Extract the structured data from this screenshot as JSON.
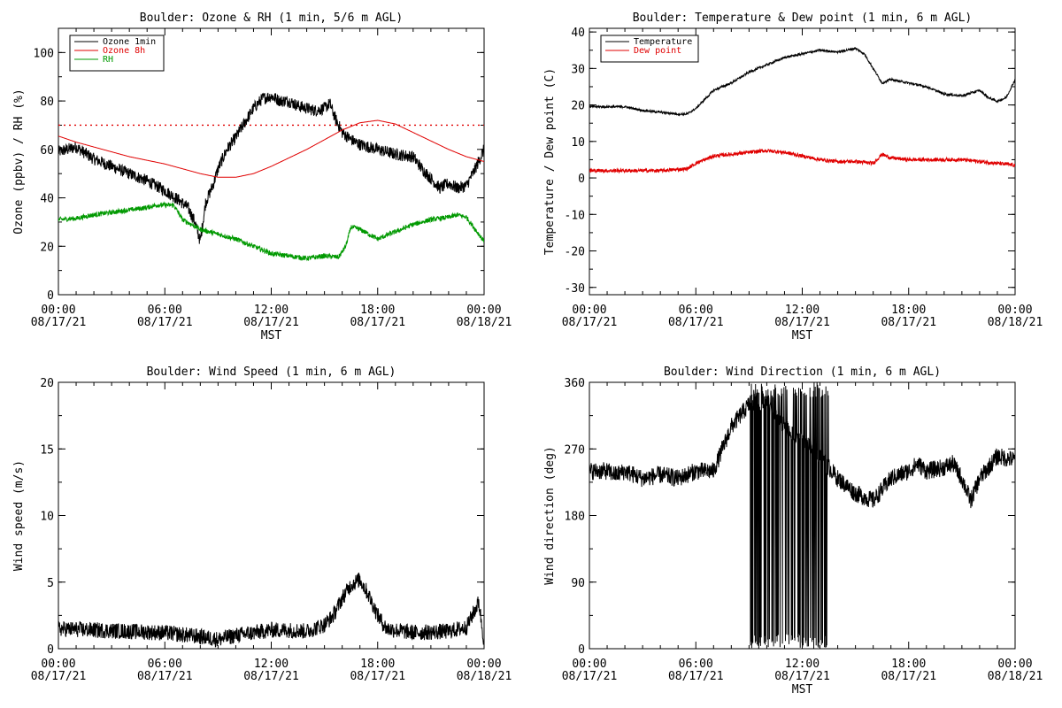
{
  "colors": {
    "black": "#000000",
    "red": "#e00000",
    "green": "#009900"
  },
  "chart_data": [
    {
      "type": "line",
      "title": "Boulder: Ozone & RH (1 min, 5/6 m AGL)",
      "xlabel": "MST",
      "ylabel": "Ozone (ppbv) / RH (%)",
      "xlim": [
        0,
        24
      ],
      "ylim": [
        0,
        110
      ],
      "yticks": [
        0,
        20,
        40,
        60,
        80,
        100
      ],
      "x_tick_hours": [
        "00:00",
        "06:00",
        "12:00",
        "18:00",
        "00:00"
      ],
      "x_tick_dates": [
        "08/17/21",
        "08/17/21",
        "08/17/21",
        "08/17/21",
        "08/18/21"
      ],
      "legend_position": "top-left",
      "reference_line": {
        "y": 70,
        "color": "#e00000",
        "style": "dotted"
      },
      "series": [
        {
          "name": "Ozone 1min",
          "color": "#000000",
          "noise": 2.5,
          "points": [
            [
              0,
              59
            ],
            [
              1,
              61
            ],
            [
              2,
              56
            ],
            [
              3,
              53
            ],
            [
              4,
              50
            ],
            [
              5,
              47
            ],
            [
              6,
              43
            ],
            [
              6.8,
              39
            ],
            [
              7.3,
              36
            ],
            [
              7.7,
              30
            ],
            [
              8,
              22
            ],
            [
              8.3,
              38
            ],
            [
              8.7,
              45
            ],
            [
              9,
              52
            ],
            [
              9.5,
              60
            ],
            [
              10,
              65
            ],
            [
              10.5,
              71
            ],
            [
              11,
              77
            ],
            [
              11.5,
              81
            ],
            [
              12,
              82
            ],
            [
              12.5,
              80
            ],
            [
              13,
              80
            ],
            [
              13.5,
              78
            ],
            [
              14,
              77
            ],
            [
              14.5,
              76
            ],
            [
              15,
              77
            ],
            [
              15.3,
              79
            ],
            [
              15.6,
              73
            ],
            [
              16,
              67
            ],
            [
              16.5,
              64
            ],
            [
              17,
              62
            ],
            [
              18,
              60
            ],
            [
              19,
              58
            ],
            [
              20,
              57
            ],
            [
              20.5,
              52
            ],
            [
              21,
              48
            ],
            [
              21.5,
              44
            ],
            [
              22,
              46
            ],
            [
              22.5,
              44
            ],
            [
              23,
              45
            ],
            [
              23.5,
              52
            ],
            [
              24,
              60
            ]
          ]
        },
        {
          "name": "Ozone 8h",
          "color": "#e00000",
          "noise": 0,
          "points": [
            [
              0,
              65.5
            ],
            [
              1,
              63
            ],
            [
              2,
              61
            ],
            [
              3,
              59
            ],
            [
              4,
              57
            ],
            [
              5,
              55.5
            ],
            [
              6,
              54
            ],
            [
              7,
              52
            ],
            [
              8,
              50
            ],
            [
              9,
              48.5
            ],
            [
              10,
              48.5
            ],
            [
              11,
              50
            ],
            [
              12,
              53
            ],
            [
              13,
              56.5
            ],
            [
              14,
              60
            ],
            [
              15,
              64
            ],
            [
              16,
              68
            ],
            [
              17,
              71
            ],
            [
              18,
              72
            ],
            [
              19,
              70.5
            ],
            [
              20,
              67
            ],
            [
              21,
              63.5
            ],
            [
              22,
              60
            ],
            [
              23,
              57
            ],
            [
              24,
              55
            ]
          ]
        },
        {
          "name": "RH",
          "color": "#009900",
          "noise": 1.0,
          "points": [
            [
              0,
              31
            ],
            [
              1,
              31.5
            ],
            [
              2,
              33
            ],
            [
              3,
              34
            ],
            [
              4,
              35
            ],
            [
              5,
              36
            ],
            [
              5.5,
              37
            ],
            [
              6,
              37
            ],
            [
              6.5,
              37
            ],
            [
              7,
              31
            ],
            [
              8,
              27
            ],
            [
              9,
              25
            ],
            [
              10,
              23
            ],
            [
              11,
              20
            ],
            [
              12,
              17
            ],
            [
              13,
              16
            ],
            [
              14,
              15
            ],
            [
              15,
              16
            ],
            [
              15.8,
              15.5
            ],
            [
              16.2,
              20
            ],
            [
              16.5,
              28
            ],
            [
              17,
              27
            ],
            [
              18,
              23
            ],
            [
              19,
              26
            ],
            [
              20,
              29
            ],
            [
              21,
              31
            ],
            [
              22,
              32
            ],
            [
              22.5,
              33
            ],
            [
              23,
              32
            ],
            [
              23.5,
              27
            ],
            [
              24,
              22
            ]
          ]
        }
      ]
    },
    {
      "type": "line",
      "title": "Boulder: Temperature & Dew point (1 min, 6 m AGL)",
      "xlabel": "MST",
      "ylabel": "Temperature / Dew point (C)",
      "xlim": [
        0,
        24
      ],
      "ylim": [
        -32,
        41
      ],
      "yticks": [
        -30,
        -20,
        -10,
        0,
        10,
        20,
        30,
        40
      ],
      "x_tick_hours": [
        "00:00",
        "06:00",
        "12:00",
        "18:00",
        "00:00"
      ],
      "x_tick_dates": [
        "08/17/21",
        "08/17/21",
        "08/17/21",
        "08/17/21",
        "08/18/21"
      ],
      "legend_position": "top-left",
      "series": [
        {
          "name": "Temperature",
          "color": "#000000",
          "noise": 0.3,
          "points": [
            [
              0,
              19.5
            ],
            [
              1,
              19.5
            ],
            [
              2,
              19.5
            ],
            [
              3,
              18.5
            ],
            [
              4,
              18
            ],
            [
              5,
              17.5
            ],
            [
              5.5,
              17.5
            ],
            [
              6,
              19
            ],
            [
              7,
              24
            ],
            [
              8,
              26
            ],
            [
              9,
              29
            ],
            [
              10,
              31
            ],
            [
              11,
              33
            ],
            [
              12,
              34
            ],
            [
              13,
              35
            ],
            [
              14,
              34.5
            ],
            [
              15,
              35.5
            ],
            [
              15.5,
              34
            ],
            [
              16,
              30
            ],
            [
              16.5,
              26
            ],
            [
              17,
              27
            ],
            [
              18,
              26
            ],
            [
              19,
              25
            ],
            [
              20,
              23
            ],
            [
              21,
              22.5
            ],
            [
              22,
              24
            ],
            [
              22.5,
              22
            ],
            [
              23,
              21
            ],
            [
              23.5,
              22
            ],
            [
              24,
              27
            ]
          ]
        },
        {
          "name": "Dew point",
          "color": "#e00000",
          "noise": 0.5,
          "points": [
            [
              0,
              2
            ],
            [
              2,
              2
            ],
            [
              4,
              2
            ],
            [
              5.5,
              2.5
            ],
            [
              6,
              4
            ],
            [
              7,
              6
            ],
            [
              8,
              6.5
            ],
            [
              9,
              7
            ],
            [
              10,
              7.5
            ],
            [
              11,
              7
            ],
            [
              12,
              6
            ],
            [
              13,
              5
            ],
            [
              14,
              4.5
            ],
            [
              15,
              4.5
            ],
            [
              16,
              4
            ],
            [
              16.5,
              6.5
            ],
            [
              17,
              5.5
            ],
            [
              18,
              5
            ],
            [
              19,
              5
            ],
            [
              20,
              5
            ],
            [
              21,
              5
            ],
            [
              22,
              4.5
            ],
            [
              23,
              4
            ],
            [
              24,
              3.5
            ]
          ]
        }
      ]
    },
    {
      "type": "line",
      "title": "Boulder: Wind Speed (1 min, 6 m AGL)",
      "xlabel": "",
      "ylabel": "Wind speed (m/s)",
      "xlim": [
        0,
        24
      ],
      "ylim": [
        0,
        20
      ],
      "yticks": [
        0,
        5,
        10,
        15,
        20
      ],
      "x_tick_hours": [
        "00:00",
        "06:00",
        "12:00",
        "18:00",
        "00:00"
      ],
      "x_tick_dates": [
        "08/17/21",
        "08/17/21",
        "08/17/21",
        "08/17/21",
        "08/18/21"
      ],
      "series": [
        {
          "name": "",
          "color": "#000000",
          "noise": 0.6,
          "points": [
            [
              0,
              1.5
            ],
            [
              2,
              1.4
            ],
            [
              4,
              1.3
            ],
            [
              6,
              1.2
            ],
            [
              8,
              0.9
            ],
            [
              9,
              0.7
            ],
            [
              10,
              1.0
            ],
            [
              11,
              1.2
            ],
            [
              12,
              1.4
            ],
            [
              13,
              1.4
            ],
            [
              14,
              1.3
            ],
            [
              15,
              1.8
            ],
            [
              15.5,
              2.5
            ],
            [
              16,
              3.8
            ],
            [
              16.5,
              4.8
            ],
            [
              17,
              5.2
            ],
            [
              17.5,
              4.0
            ],
            [
              18,
              2.5
            ],
            [
              18.5,
              1.5
            ],
            [
              20,
              1.2
            ],
            [
              22,
              1.3
            ],
            [
              23,
              1.6
            ],
            [
              23.7,
              3.5
            ],
            [
              24,
              0.5
            ]
          ]
        }
      ]
    },
    {
      "type": "line",
      "title": "Boulder: Wind Direction (1 min, 6 m AGL)",
      "xlabel": "MST",
      "ylabel": "Wind direction (deg)",
      "xlim": [
        0,
        24
      ],
      "ylim": [
        0,
        360
      ],
      "yticks": [
        0,
        90,
        180,
        270,
        360
      ],
      "x_tick_hours": [
        "00:00",
        "06:00",
        "12:00",
        "18:00",
        "00:00"
      ],
      "x_tick_dates": [
        "08/17/21",
        "08/17/21",
        "08/17/21",
        "08/17/21",
        "08/18/21"
      ],
      "series": [
        {
          "name": "",
          "color": "#000000",
          "noise": 12,
          "points": [
            [
              0,
              240
            ],
            [
              1,
              240
            ],
            [
              1.5,
              235
            ],
            [
              2,
              240
            ],
            [
              3,
              230
            ],
            [
              4,
              235
            ],
            [
              5,
              230
            ],
            [
              6,
              240
            ],
            [
              7,
              240
            ],
            [
              7.5,
              270
            ],
            [
              8,
              300
            ],
            [
              8.5,
              315
            ],
            [
              9,
              330
            ],
            [
              9.5,
              335
            ],
            [
              10,
              330
            ],
            [
              11,
              300
            ],
            [
              12,
              280
            ],
            [
              13,
              260
            ],
            [
              14,
              230
            ],
            [
              15,
              210
            ],
            [
              16,
              200
            ],
            [
              17,
              230
            ],
            [
              18,
              240
            ],
            [
              18.5,
              250
            ],
            [
              19,
              240
            ],
            [
              20,
              245
            ],
            [
              20.5,
              250
            ],
            [
              21,
              230
            ],
            [
              21.5,
              200
            ],
            [
              22,
              230
            ],
            [
              23,
              260
            ],
            [
              24,
              255
            ]
          ]
        }
      ],
      "oscillation_range_hours": [
        9,
        13.5
      ]
    }
  ]
}
